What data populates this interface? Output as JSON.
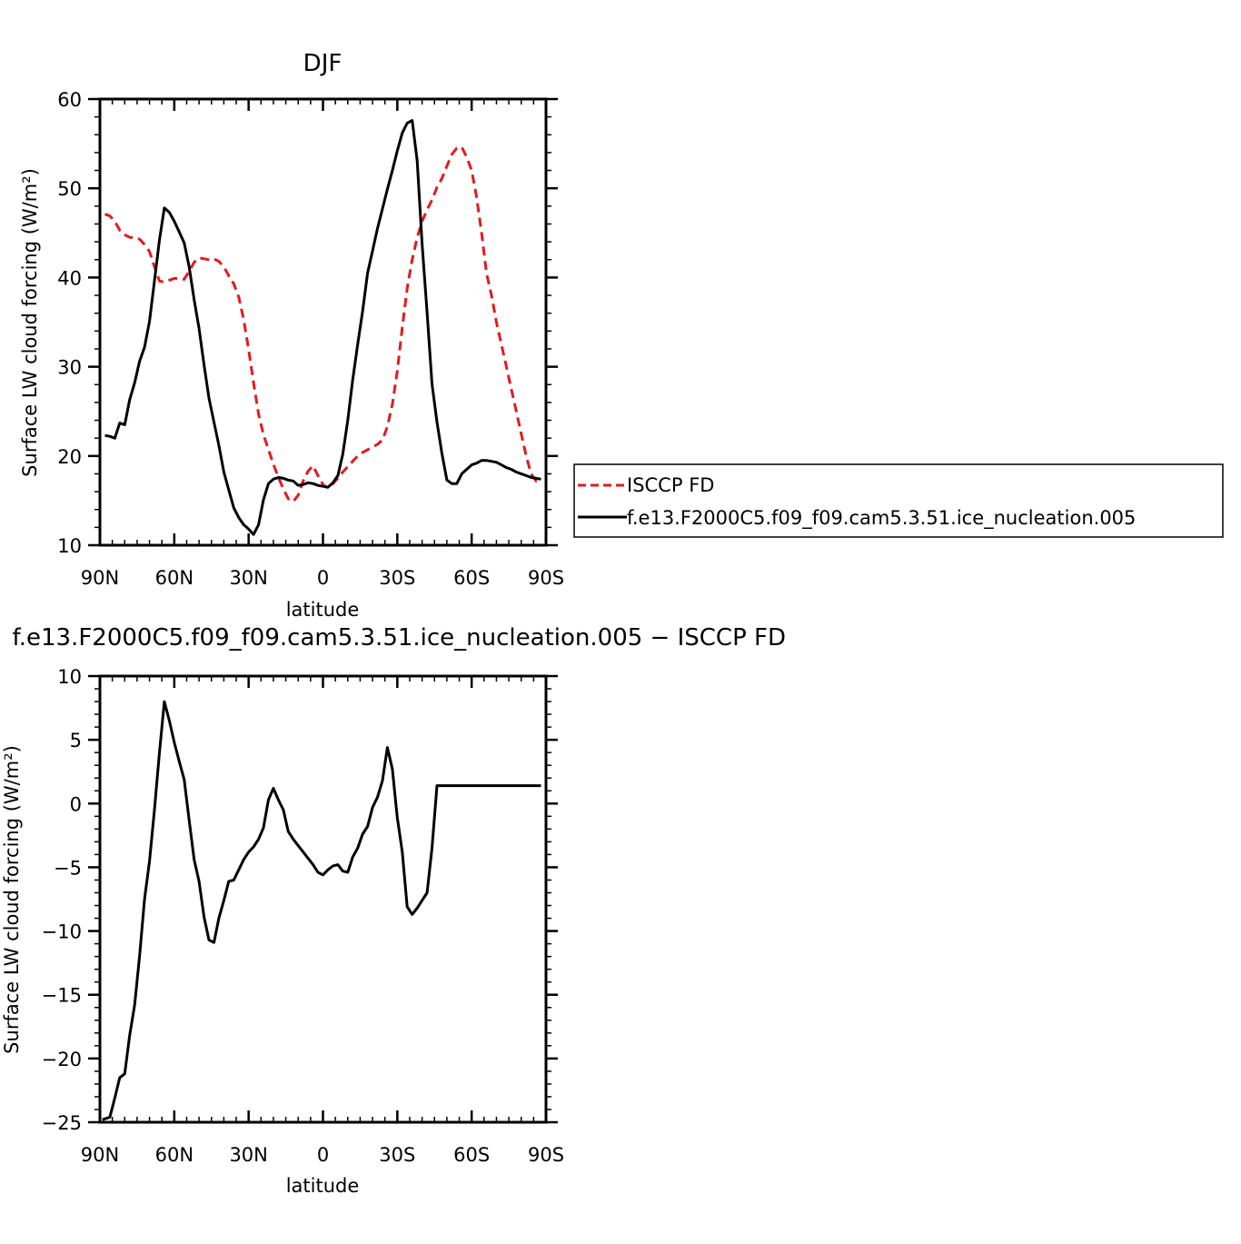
{
  "chart_data": [
    {
      "type": "line",
      "title": "DJF",
      "xlabel": "latitude",
      "ylabel": "Surface LW cloud forcing (W/m²)",
      "xlim": [
        90,
        -90
      ],
      "ylim": [
        10,
        60
      ],
      "x_ticks": [
        90,
        60,
        30,
        0,
        -30,
        -60,
        -90
      ],
      "x_tick_labels": [
        "90N",
        "60N",
        "30N",
        "0",
        "30S",
        "60S",
        "90S"
      ],
      "y_ticks": [
        10,
        20,
        30,
        40,
        50,
        60
      ],
      "y_tick_labels": [
        "10",
        "20",
        "30",
        "40",
        "50",
        "60"
      ],
      "legend_position": "right",
      "series": [
        {
          "name": "ISCCP FD",
          "color": "#e41a1c",
          "dash": "dashed",
          "x": [
            88,
            86,
            84,
            82,
            80,
            78,
            76,
            74,
            72,
            70,
            68,
            66,
            64,
            62,
            60,
            58,
            56,
            54,
            52,
            50,
            48,
            46,
            44,
            42,
            40,
            38,
            36,
            34,
            32,
            30,
            28,
            26,
            24,
            22,
            20,
            18,
            16,
            14,
            12,
            10,
            8,
            6,
            4,
            2,
            0,
            -2,
            -4,
            -6,
            -8,
            -10,
            -12,
            -14,
            -16,
            -18,
            -20,
            -22,
            -24,
            -26,
            -28,
            -30,
            -32,
            -34,
            -36,
            -38,
            -40,
            -42,
            -44,
            -46,
            -48,
            -50,
            -52,
            -54,
            -56,
            -58,
            -60,
            -62,
            -64,
            -66,
            -68,
            -70,
            -72,
            -74,
            -76,
            -78,
            -80,
            -82,
            -84,
            -86,
            -88
          ],
          "y": [
            47.1,
            46.9,
            46.3,
            45.3,
            44.8,
            44.5,
            44.5,
            44.3,
            43.7,
            42.9,
            41.2,
            39.6,
            39.5,
            39.7,
            39.9,
            39.9,
            39.8,
            40.7,
            41.7,
            42.2,
            42.1,
            42.0,
            42.1,
            41.8,
            41.2,
            40.2,
            39.3,
            37.8,
            35.3,
            31.9,
            28.2,
            24.7,
            22.4,
            20.7,
            19.1,
            17.6,
            16.3,
            15.2,
            14.9,
            15.6,
            17.2,
            18.3,
            18.9,
            17.8,
            16.8,
            16.4,
            16.9,
            17.5,
            18.2,
            18.8,
            19.4,
            20.0,
            20.4,
            20.7,
            21.0,
            21.3,
            21.8,
            23.3,
            25.8,
            29.5,
            34.4,
            38.8,
            42.0,
            44.5,
            46.3,
            47.6,
            48.7,
            50.1,
            51.1,
            52.5,
            53.8,
            54.5,
            54.6,
            53.5,
            52.0,
            49.0,
            45.0,
            40.5,
            38.0,
            35.0,
            32.5,
            30.0,
            27.5,
            25.0,
            22.5,
            20.0,
            18.0,
            17.2,
            17.5
          ],
          "show_in_legend": true
        },
        {
          "name": "f.e13.F2000C5.f09_f09.cam5.3.51.ice_nucleation.005",
          "color": "#000000",
          "dash": "solid",
          "x": [
            88,
            86,
            84,
            82,
            80,
            78,
            76,
            74,
            72,
            70,
            68,
            66,
            64,
            62,
            60,
            58,
            56,
            54,
            52,
            50,
            48,
            46,
            44,
            42,
            40,
            38,
            36,
            34,
            32,
            30,
            28,
            26,
            24,
            22,
            20,
            18,
            16,
            14,
            12,
            10,
            8,
            6,
            4,
            2,
            0,
            -2,
            -4,
            -6,
            -8,
            -10,
            -12,
            -14,
            -16,
            -18,
            -20,
            -22,
            -24,
            -26,
            -28,
            -30,
            -32,
            -34,
            -36,
            -38,
            -40,
            -42,
            -44,
            -46,
            -48,
            -50,
            -52,
            -54,
            -56,
            -58,
            -60,
            -62,
            -64,
            -66,
            -68,
            -70,
            -72,
            -74,
            -76,
            -78,
            -80,
            -82,
            -84,
            -86,
            -88
          ],
          "y": [
            22.3,
            22.2,
            22.0,
            23.7,
            23.5,
            26.3,
            28.2,
            30.6,
            32.2,
            35.1,
            39.6,
            44.2,
            47.8,
            47.3,
            46.3,
            45.1,
            43.9,
            41.2,
            37.5,
            34.3,
            30.2,
            26.5,
            23.8,
            21.2,
            18.2,
            16.2,
            14.2,
            13.1,
            12.3,
            11.8,
            11.2,
            12.3,
            15.1,
            16.9,
            17.4,
            17.6,
            17.5,
            17.3,
            17.2,
            16.7,
            16.8,
            17.0,
            16.9,
            16.7,
            16.6,
            16.5,
            17.0,
            17.8,
            20.2,
            24.0,
            28.5,
            32.5,
            36.2,
            40.5,
            43.0,
            45.5,
            47.7,
            49.9,
            52.0,
            54.2,
            56.2,
            57.3,
            57.6,
            53.1,
            43.8,
            36.1,
            28.1,
            23.8,
            20.3,
            17.3,
            16.9,
            16.9,
            18.0,
            18.5,
            19.0,
            19.2,
            19.5,
            19.5,
            19.4,
            19.3,
            19.0,
            18.7,
            18.5,
            18.2,
            18.0,
            17.8,
            17.6,
            17.5,
            17.4
          ],
          "show_in_legend": true
        }
      ]
    },
    {
      "type": "line",
      "title": "f.e13.F2000C5.f09_f09.cam5.3.51.ice_nucleation.005 − ISCCP FD",
      "xlabel": "latitude",
      "ylabel": "Surface LW cloud forcing (W/m²)",
      "xlim": [
        90,
        -90
      ],
      "ylim": [
        -25,
        10
      ],
      "x_ticks": [
        90,
        60,
        30,
        0,
        -30,
        -60,
        -90
      ],
      "x_tick_labels": [
        "90N",
        "60N",
        "30N",
        "0",
        "30S",
        "60S",
        "90S"
      ],
      "y_ticks": [
        -25,
        -20,
        -15,
        -10,
        -5,
        0,
        5,
        10
      ],
      "y_tick_labels": [
        "−25",
        "−20",
        "−15",
        "−10",
        "−5",
        "0",
        "5",
        "10"
      ],
      "series": [
        {
          "name": "",
          "color": "#000000",
          "dash": "solid",
          "x": [
            89,
            86,
            84,
            82,
            80,
            78,
            76,
            74,
            72,
            70,
            68,
            66,
            64,
            62,
            60,
            58,
            56,
            54,
            52,
            50,
            48,
            46,
            44,
            42,
            40,
            38,
            36,
            34,
            32,
            30,
            28,
            26,
            24,
            22,
            20,
            18,
            16,
            14,
            12,
            10,
            8,
            6,
            4,
            2,
            0,
            -2,
            -4,
            -6,
            -8,
            -10,
            -12,
            -14,
            -16,
            -18,
            -20,
            -22,
            -24,
            -26,
            -28,
            -30,
            -32,
            -34,
            -36,
            -38,
            -40,
            -42,
            -44,
            -46,
            -48,
            -50,
            -52,
            -54,
            -56,
            -58,
            -60,
            -62,
            -64,
            -66,
            -68,
            -70,
            -72,
            -74,
            -76,
            -78,
            -80,
            -82,
            -84,
            -86,
            -88
          ],
          "y": [
            -24.8,
            -24.6,
            -23.1,
            -21.5,
            -21.2,
            -18.2,
            -15.8,
            -12.0,
            -7.5,
            -4.5,
            -0.5,
            4.0,
            8.0,
            6.5,
            4.8,
            3.3,
            1.9,
            -1.3,
            -4.4,
            -6.1,
            -8.9,
            -10.7,
            -10.9,
            -9.0,
            -7.6,
            -6.1,
            -6.0,
            -5.2,
            -4.4,
            -3.8,
            -3.4,
            -2.8,
            -1.9,
            0.3,
            1.2,
            0.3,
            -0.5,
            -2.2,
            -2.8,
            -3.3,
            -3.8,
            -4.3,
            -4.8,
            -5.4,
            -5.6,
            -5.2,
            -4.9,
            -4.8,
            -5.3,
            -5.4,
            -4.2,
            -3.5,
            -2.4,
            -1.8,
            -0.3,
            0.5,
            1.8,
            4.4,
            2.7,
            -1.1,
            -3.8,
            -8.1,
            -8.7,
            -8.2,
            -7.6,
            -7.0,
            -3.5,
            1.4,
            1.4,
            1.4,
            1.4,
            1.4,
            1.4,
            1.4,
            1.4,
            1.4,
            1.4,
            1.4,
            1.4,
            1.4,
            1.4,
            1.4,
            1.4,
            1.4,
            1.4,
            1.4,
            1.4,
            1.4,
            1.4
          ],
          "show_in_legend": false
        }
      ]
    }
  ]
}
